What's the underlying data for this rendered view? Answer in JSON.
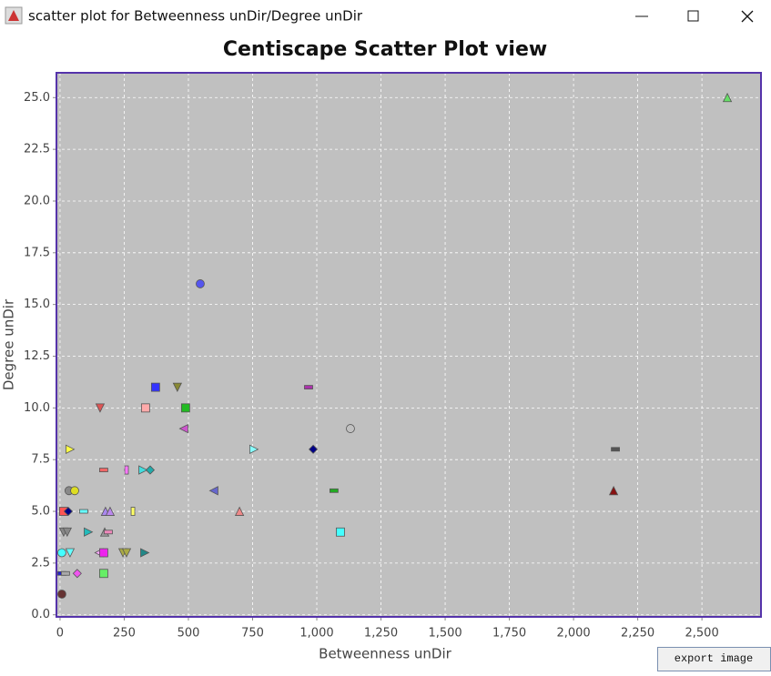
{
  "window": {
    "title": "scatter plot for Betweenness unDir/Degree unDir",
    "button": "export image"
  },
  "chart_data": {
    "type": "scatter",
    "title": "Centiscape Scatter Plot view",
    "x_label": "Betweenness unDir",
    "y_label": "Degree unDir",
    "x": [
      2599,
      546,
      372,
      457,
      968,
      156,
      333,
      489,
      1131,
      482,
      39,
      755,
      986,
      2163,
      170,
      259,
      323,
      351,
      35,
      57,
      599,
      1067,
      2156,
      14,
      32,
      92,
      177,
      195,
      284,
      699,
      14,
      28,
      110,
      174,
      188,
      1092,
      7,
      39,
      152,
      170,
      245,
      259,
      330,
      7,
      21,
      67,
      170,
      7
    ],
    "values": [
      25,
      16,
      11,
      11,
      11,
      10,
      10,
      10,
      9,
      9,
      8,
      8,
      8,
      8,
      7,
      7,
      7,
      7,
      6,
      6,
      6,
      6,
      6,
      5,
      5,
      5,
      5,
      5,
      5,
      5,
      4,
      4,
      4,
      4,
      4,
      4,
      3,
      3,
      3,
      3,
      3,
      3,
      3,
      2,
      2,
      2,
      2,
      1
    ],
    "colors": [
      "#66dd66",
      "#5555ee",
      "#3333ff",
      "#888833",
      "#aa33aa",
      "#dd5555",
      "#ffaaaa",
      "#22bb22",
      "#c0c0c0",
      "#cc55cc",
      "#ffff44",
      "#88ffff",
      "#000088",
      "#555555",
      "#ee6666",
      "#ff77ff",
      "#44dddd",
      "#22aaaa",
      "#888888",
      "#dddd22",
      "#6666cc",
      "#22aa22",
      "#881111",
      "#ff5555",
      "#000088",
      "#66ffff",
      "#aa88ee",
      "#bb88ee",
      "#ffff66",
      "#ee8888",
      "#888888",
      "#888888",
      "#22bbbb",
      "#999999",
      "#ee88bb",
      "#44ffff",
      "#44ffff",
      "#66ffff",
      "#ffaaff",
      "#ee22ee",
      "#aaaa44",
      "#aaaa44",
      "#228888",
      "#2222cc",
      "#aaaaaa",
      "#ee55ee",
      "#66ee66",
      "#663333"
    ],
    "markers": [
      "triangle",
      "circle",
      "square",
      "down",
      "dash",
      "down",
      "square",
      "square",
      "circle",
      "left",
      "right",
      "right",
      "diamond",
      "dash",
      "dash",
      "rect",
      "right",
      "diamond",
      "circle",
      "circle",
      "left",
      "dash",
      "triangle",
      "square",
      "diamond",
      "dash",
      "triangle",
      "triangle",
      "rect",
      "triangle",
      "down",
      "down",
      "right",
      "triangle",
      "dash",
      "square",
      "circle",
      "down",
      "left",
      "square",
      "down",
      "down",
      "right",
      "dash",
      "dash",
      "diamond",
      "square",
      "circle"
    ],
    "xlim": [
      -14,
      2730
    ],
    "ylim": [
      -0.1,
      26.2
    ],
    "xticks": [
      0,
      250,
      500,
      750,
      {
        "value": 1000,
        "label": "1,000"
      },
      {
        "value": 1250,
        "label": "1,250"
      },
      {
        "value": 1500,
        "label": "1,500"
      },
      {
        "value": 1750,
        "label": "1,750"
      },
      {
        "value": 2000,
        "label": "2,000"
      },
      {
        "value": 2250,
        "label": "2,250"
      },
      {
        "value": 2500,
        "label": "2,500"
      }
    ],
    "yticks": [
      {
        "value": 0,
        "label": "0.0"
      },
      2.5,
      {
        "value": 5,
        "label": "5.0"
      },
      7.5,
      {
        "value": 10,
        "label": "10.0"
      },
      12.5,
      {
        "value": 15,
        "label": "15.0"
      },
      17.5,
      {
        "value": 20,
        "label": "20.0"
      },
      22.5,
      {
        "value": 25,
        "label": "25.0"
      }
    ],
    "grid": true,
    "background": "#c0c0c0",
    "border_color": "#5533aa"
  }
}
